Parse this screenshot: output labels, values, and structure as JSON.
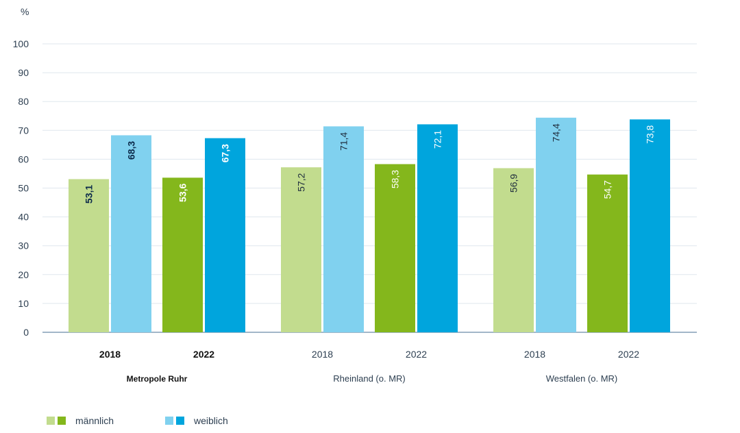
{
  "chart_data": {
    "type": "bar",
    "unit_label": "%",
    "ylim": [
      0,
      100
    ],
    "yticks": [
      0,
      10,
      20,
      30,
      40,
      50,
      60,
      70,
      80,
      90,
      100
    ],
    "grid": true,
    "groups": [
      {
        "name": "Metropole Ruhr",
        "bold": true,
        "years": [
          {
            "year": "2018",
            "maennlich": 53.1,
            "weiblich": 68.3,
            "maennlich_label": "53,1",
            "weiblich_label": "68,3"
          },
          {
            "year": "2022",
            "maennlich": 53.6,
            "weiblich": 67.3,
            "maennlich_label": "53,6",
            "weiblich_label": "67,3"
          }
        ]
      },
      {
        "name": "Rheinland (o. MR)",
        "bold": false,
        "years": [
          {
            "year": "2018",
            "maennlich": 57.2,
            "weiblich": 71.4,
            "maennlich_label": "57,2",
            "weiblich_label": "71,4"
          },
          {
            "year": "2022",
            "maennlich": 58.3,
            "weiblich": 72.1,
            "maennlich_label": "58,3",
            "weiblich_label": "72,1"
          }
        ]
      },
      {
        "name": "Westfalen (o. MR)",
        "bold": false,
        "years": [
          {
            "year": "2018",
            "maennlich": 56.9,
            "weiblich": 74.4,
            "maennlich_label": "56,9",
            "weiblich_label": "74,4"
          },
          {
            "year": "2022",
            "maennlich": 54.7,
            "weiblich": 73.8,
            "maennlich_label": "54,7",
            "weiblich_label": "73,8"
          }
        ]
      }
    ],
    "colors": {
      "maennlich_2018": "#c2dc8e",
      "maennlich_2022": "#84b71c",
      "weiblich_2018": "#80d1ef",
      "weiblich_2022": "#00a5dd",
      "grid": "#dfe7ee",
      "axis": "#6b8aa6"
    },
    "legend": {
      "maennlich": "männlich",
      "weiblich": "weiblich"
    }
  }
}
